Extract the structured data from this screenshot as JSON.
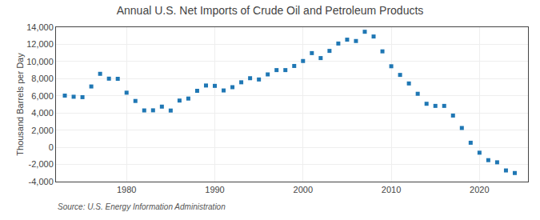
{
  "chart_data": {
    "type": "scatter",
    "title": "Annual U.S. Net Imports of Crude Oil and Petroleum Products",
    "ylabel": "Thousand Barrels per Day",
    "annotations": [
      "Source: U.S. Energy Information Administration"
    ],
    "x": [
      1973,
      1974,
      1975,
      1976,
      1977,
      1978,
      1979,
      1980,
      1981,
      1982,
      1983,
      1984,
      1985,
      1986,
      1987,
      1988,
      1989,
      1990,
      1991,
      1992,
      1993,
      1994,
      1995,
      1996,
      1997,
      1998,
      1999,
      2000,
      2001,
      2002,
      2003,
      2004,
      2005,
      2006,
      2007,
      2008,
      2009,
      2010,
      2011,
      2012,
      2013,
      2014,
      2015,
      2016,
      2017,
      2018,
      2019,
      2020,
      2021,
      2022,
      2023,
      2024
    ],
    "values": [
      6026,
      5893,
      5846,
      7090,
      8565,
      8002,
      7985,
      6365,
      5401,
      4298,
      4310,
      4742,
      4284,
      5447,
      5682,
      6587,
      7202,
      7161,
      6626,
      7007,
      7578,
      8054,
      7905,
      8497,
      9000,
      9000,
      9480,
      10060,
      10980,
      10400,
      11238,
      12097,
      12549,
      12390,
      13468,
      12915,
      11184,
      9448,
      8439,
      7442,
      6239,
      5074,
      4826,
      4826,
      3700,
      2250,
      530,
      -630,
      -1500,
      -1750,
      -2700,
      -3000
    ],
    "marker": "square",
    "xlim": [
      1972,
      2025.5
    ],
    "xticks": [
      1980,
      1990,
      2000,
      2010,
      2020
    ],
    "ylim": [
      -4000,
      14000
    ],
    "yticks": [
      {
        "value": -4000,
        "label": "-4,000"
      },
      {
        "value": -2000,
        "label": "-2,000"
      },
      0,
      {
        "value": 2000,
        "label": "2,000"
      },
      {
        "value": 4000,
        "label": "4,000"
      },
      {
        "value": 6000,
        "label": "6,000"
      },
      {
        "value": 8000,
        "label": "8,000"
      },
      {
        "value": 10000,
        "label": "10,000"
      },
      {
        "value": 12000,
        "label": "12,000"
      },
      {
        "value": 14000,
        "label": "14,000"
      }
    ],
    "grid": true
  }
}
